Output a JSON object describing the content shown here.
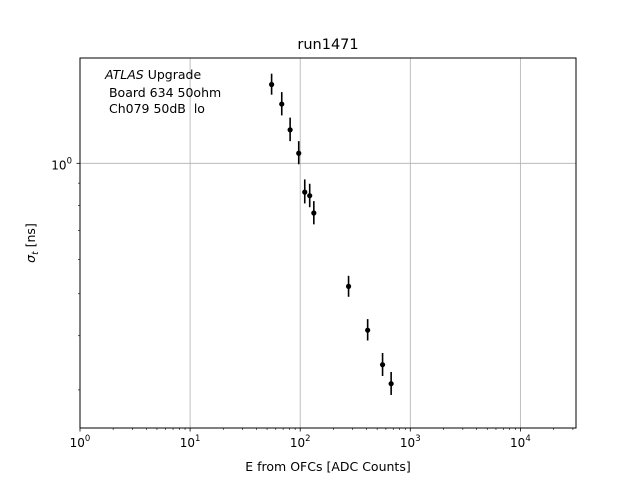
{
  "chart_data": {
    "type": "scatter",
    "title": "run1471",
    "xlabel": "E from OFCs [ADC Counts]",
    "ylabel_base": "σ",
    "ylabel_sub": "t",
    "ylabel_unit": " [ns]",
    "xscale": "log",
    "yscale": "log",
    "xlim": [
      1,
      32000
    ],
    "ylim": [
      0.245,
      1.75
    ],
    "grid": true,
    "annotation": {
      "italic": "ATLAS",
      "rest": " Upgrade",
      "line2": " Board 634 50ohm",
      "line3": " Ch079 50dB  lo"
    },
    "x_ticks": [
      {
        "base": "10",
        "exp": "0",
        "value": 1
      },
      {
        "base": "10",
        "exp": "1",
        "value": 10
      },
      {
        "base": "10",
        "exp": "2",
        "value": 100
      },
      {
        "base": "10",
        "exp": "3",
        "value": 1000
      },
      {
        "base": "10",
        "exp": "4",
        "value": 10000
      }
    ],
    "y_ticks": [
      {
        "base": "10",
        "exp": "0",
        "value": 1
      }
    ],
    "points": [
      {
        "x": 55,
        "y": 1.52,
        "err_lo": 0.08,
        "err_hi": 0.09
      },
      {
        "x": 68,
        "y": 1.37,
        "err_lo": 0.08,
        "err_hi": 0.09
      },
      {
        "x": 81,
        "y": 1.195,
        "err_lo": 0.07,
        "err_hi": 0.08
      },
      {
        "x": 97,
        "y": 1.055,
        "err_lo": 0.06,
        "err_hi": 0.07
      },
      {
        "x": 110,
        "y": 0.858,
        "err_lo": 0.05,
        "err_hi": 0.06
      },
      {
        "x": 122,
        "y": 0.842,
        "err_lo": 0.05,
        "err_hi": 0.055
      },
      {
        "x": 133,
        "y": 0.768,
        "err_lo": 0.045,
        "err_hi": 0.05
      },
      {
        "x": 275,
        "y": 0.52,
        "err_lo": 0.028,
        "err_hi": 0.03
      },
      {
        "x": 410,
        "y": 0.412,
        "err_lo": 0.022,
        "err_hi": 0.025
      },
      {
        "x": 560,
        "y": 0.343,
        "err_lo": 0.02,
        "err_hi": 0.022
      },
      {
        "x": 670,
        "y": 0.31,
        "err_lo": 0.018,
        "err_hi": 0.02
      }
    ]
  }
}
